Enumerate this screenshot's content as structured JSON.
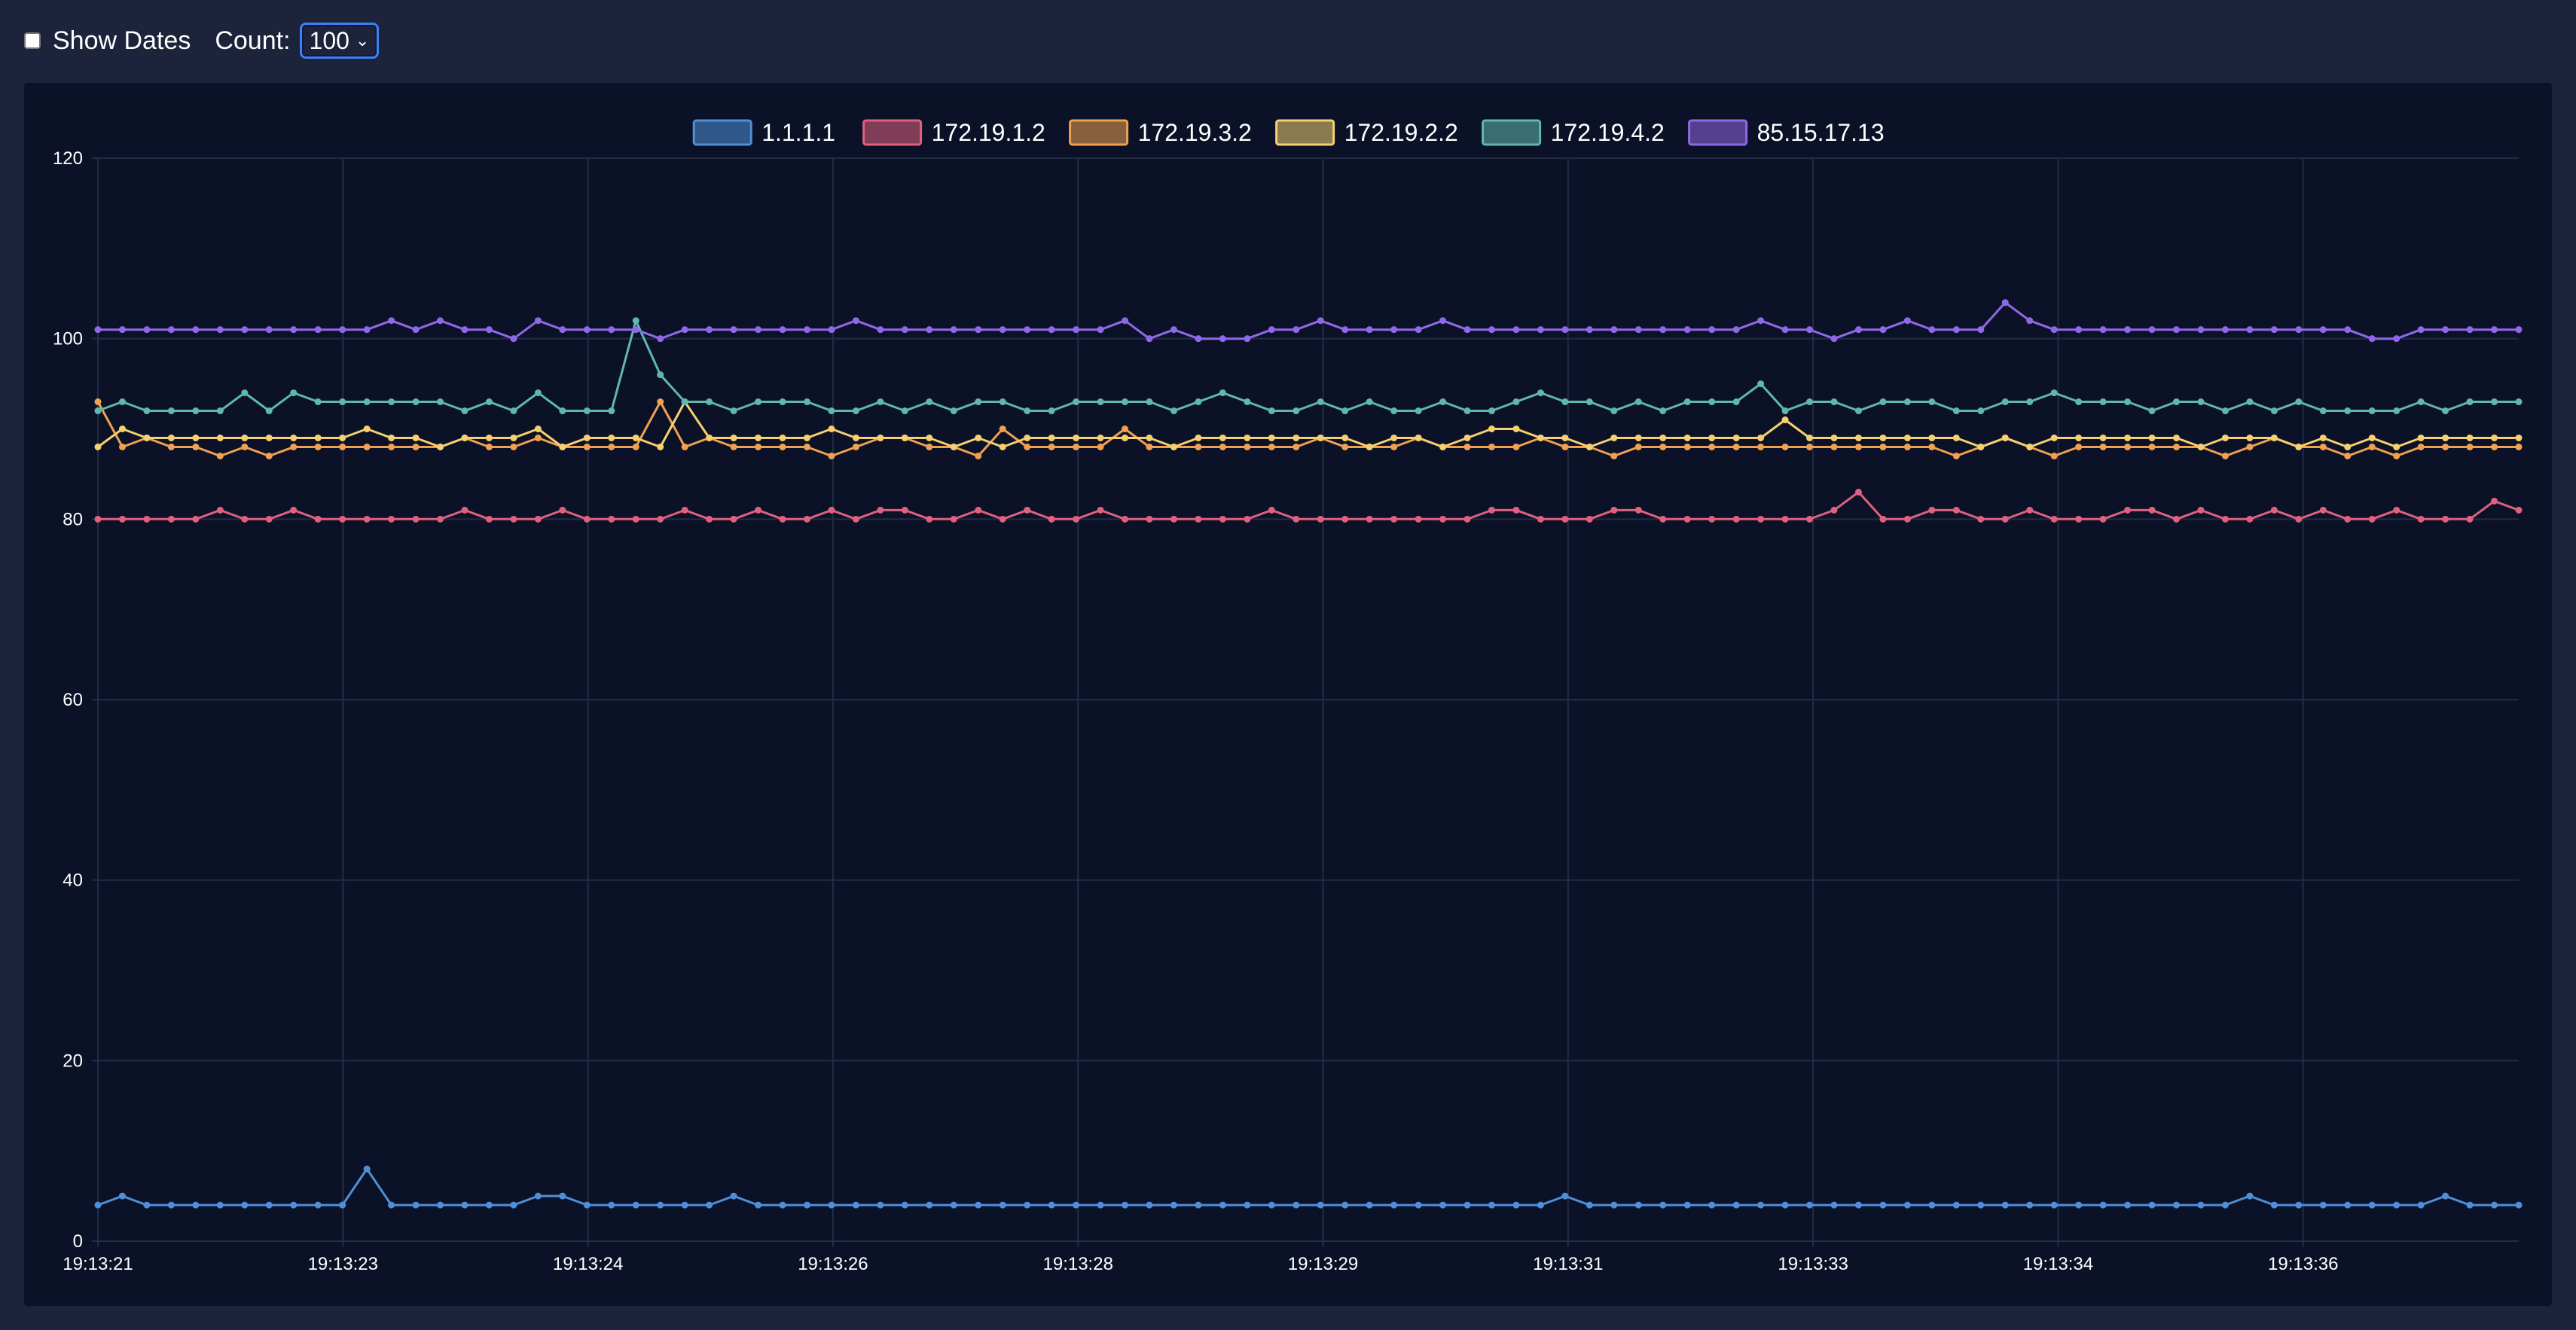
{
  "toolbar": {
    "show_dates_label": "Show Dates",
    "show_dates_checked": false,
    "count_label": "Count:",
    "count_value": "100"
  },
  "chart_data": {
    "type": "line",
    "title": "",
    "xlabel": "",
    "ylabel": "",
    "ylim": [
      0,
      120
    ],
    "y_ticks": [
      0,
      20,
      40,
      60,
      80,
      100,
      120
    ],
    "x_tick_labels": [
      "19:13:21",
      "19:13:23",
      "19:13:24",
      "19:13:26",
      "19:13:28",
      "19:13:29",
      "19:13:31",
      "19:13:33",
      "19:13:34",
      "19:13:36"
    ],
    "grid": true,
    "legend_position": "top-center",
    "points_per_series": 100,
    "series": [
      {
        "name": "1.1.1.1",
        "color": "#4f8fd8",
        "values": [
          4,
          5,
          4,
          4,
          4,
          4,
          4,
          4,
          4,
          4,
          4,
          8,
          4,
          4,
          4,
          4,
          4,
          4,
          5,
          5,
          4,
          4,
          4,
          4,
          4,
          4,
          5,
          4,
          4,
          4,
          4,
          4,
          4,
          4,
          4,
          4,
          4,
          4,
          4,
          4,
          4,
          4,
          4,
          4,
          4,
          4,
          4,
          4,
          4,
          4,
          4,
          4,
          4,
          4,
          4,
          4,
          4,
          4,
          4,
          4,
          5,
          4,
          4,
          4,
          4,
          4,
          4,
          4,
          4,
          4,
          4,
          4,
          4,
          4,
          4,
          4,
          4,
          4,
          4,
          4,
          4,
          4,
          4,
          4,
          4,
          4,
          4,
          4,
          5,
          4,
          4,
          4,
          4,
          4,
          4,
          4,
          5,
          4,
          4,
          4
        ]
      },
      {
        "name": "172.19.1.2",
        "color": "#e0607f",
        "values": [
          80,
          80,
          80,
          80,
          80,
          81,
          80,
          80,
          81,
          80,
          80,
          80,
          80,
          80,
          80,
          81,
          80,
          80,
          80,
          81,
          80,
          80,
          80,
          80,
          81,
          80,
          80,
          81,
          80,
          80,
          81,
          80,
          81,
          81,
          80,
          80,
          81,
          80,
          81,
          80,
          80,
          81,
          80,
          80,
          80,
          80,
          80,
          80,
          81,
          80,
          80,
          80,
          80,
          80,
          80,
          80,
          80,
          81,
          81,
          80,
          80,
          80,
          81,
          81,
          80,
          80,
          80,
          80,
          80,
          80,
          80,
          81,
          83,
          80,
          80,
          81,
          81,
          80,
          80,
          81,
          80,
          80,
          80,
          81,
          81,
          80,
          81,
          80,
          80,
          81,
          80,
          81,
          80,
          80,
          81,
          80,
          80,
          80,
          82,
          81
        ]
      },
      {
        "name": "172.19.3.2",
        "color": "#f0a050",
        "values": [
          93,
          88,
          89,
          88,
          88,
          87,
          88,
          87,
          88,
          88,
          88,
          88,
          88,
          88,
          88,
          89,
          88,
          88,
          89,
          88,
          88,
          88,
          88,
          93,
          88,
          89,
          88,
          88,
          88,
          88,
          87,
          88,
          89,
          89,
          88,
          88,
          87,
          90,
          88,
          88,
          88,
          88,
          90,
          88,
          88,
          88,
          88,
          88,
          88,
          88,
          89,
          88,
          88,
          88,
          89,
          88,
          88,
          88,
          88,
          89,
          88,
          88,
          87,
          88,
          88,
          88,
          88,
          88,
          88,
          88,
          88,
          88,
          88,
          88,
          88,
          88,
          87,
          88,
          89,
          88,
          87,
          88,
          88,
          88,
          88,
          88,
          88,
          87,
          88,
          89,
          88,
          88,
          87,
          88,
          87,
          88,
          88,
          88,
          88,
          88
        ]
      },
      {
        "name": "172.19.2.2",
        "color": "#f5d070",
        "values": [
          88,
          90,
          89,
          89,
          89,
          89,
          89,
          89,
          89,
          89,
          89,
          90,
          89,
          89,
          88,
          89,
          89,
          89,
          90,
          88,
          89,
          89,
          89,
          88,
          93,
          89,
          89,
          89,
          89,
          89,
          90,
          89,
          89,
          89,
          89,
          88,
          89,
          88,
          89,
          89,
          89,
          89,
          89,
          89,
          88,
          89,
          89,
          89,
          89,
          89,
          89,
          89,
          88,
          89,
          89,
          88,
          89,
          90,
          90,
          89,
          89,
          88,
          89,
          89,
          89,
          89,
          89,
          89,
          89,
          91,
          89,
          89,
          89,
          89,
          89,
          89,
          89,
          88,
          89,
          88,
          89,
          89,
          89,
          89,
          89,
          89,
          88,
          89,
          89,
          89,
          88,
          89,
          88,
          89,
          88,
          89,
          89,
          89,
          89,
          89
        ]
      },
      {
        "name": "172.19.4.2",
        "color": "#5fb8b0",
        "values": [
          92,
          93,
          92,
          92,
          92,
          92,
          94,
          92,
          94,
          93,
          93,
          93,
          93,
          93,
          93,
          92,
          93,
          92,
          94,
          92,
          92,
          92,
          102,
          96,
          93,
          93,
          92,
          93,
          93,
          93,
          92,
          92,
          93,
          92,
          93,
          92,
          93,
          93,
          92,
          92,
          93,
          93,
          93,
          93,
          92,
          93,
          94,
          93,
          92,
          92,
          93,
          92,
          93,
          92,
          92,
          93,
          92,
          92,
          93,
          94,
          93,
          93,
          92,
          93,
          92,
          93,
          93,
          93,
          95,
          92,
          93,
          93,
          92,
          93,
          93,
          93,
          92,
          92,
          93,
          93,
          94,
          93,
          93,
          93,
          92,
          93,
          93,
          92,
          93,
          92,
          93,
          92,
          92,
          92,
          92,
          93,
          92,
          93,
          93,
          93
        ]
      },
      {
        "name": "85.15.17.13",
        "color": "#8f68e8",
        "values": [
          101,
          101,
          101,
          101,
          101,
          101,
          101,
          101,
          101,
          101,
          101,
          101,
          102,
          101,
          102,
          101,
          101,
          100,
          102,
          101,
          101,
          101,
          101,
          100,
          101,
          101,
          101,
          101,
          101,
          101,
          101,
          102,
          101,
          101,
          101,
          101,
          101,
          101,
          101,
          101,
          101,
          101,
          102,
          100,
          101,
          100,
          100,
          100,
          101,
          101,
          102,
          101,
          101,
          101,
          101,
          102,
          101,
          101,
          101,
          101,
          101,
          101,
          101,
          101,
          101,
          101,
          101,
          101,
          102,
          101,
          101,
          100,
          101,
          101,
          102,
          101,
          101,
          101,
          104,
          102,
          101,
          101,
          101,
          101,
          101,
          101,
          101,
          101,
          101,
          101,
          101,
          101,
          101,
          100,
          100,
          101,
          101,
          101,
          101,
          101
        ]
      }
    ]
  }
}
